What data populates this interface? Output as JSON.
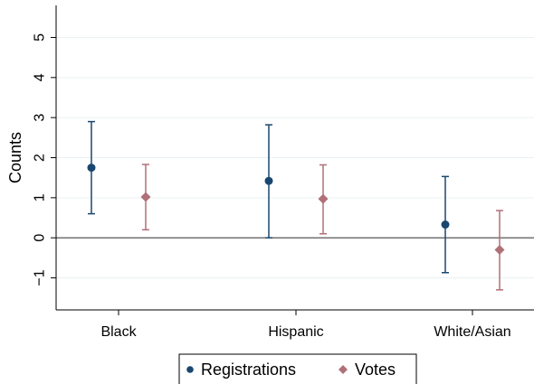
{
  "chart_data": {
    "type": "scatter",
    "subtype": "point-estimates-with-confidence-intervals",
    "ylabel": "Counts",
    "xlabel": "",
    "categories": [
      "Black",
      "Hispanic",
      "White/Asian"
    ],
    "ylim": [
      -1.8,
      5.8
    ],
    "yticks": [
      -1,
      0,
      1,
      2,
      3,
      4,
      5
    ],
    "ytick_labels": [
      "−1",
      "0",
      "1",
      "2",
      "3",
      "4",
      "5"
    ],
    "grid": true,
    "reference_line_y": 0,
    "legend_position": "bottom-center",
    "series": [
      {
        "name": "Registrations",
        "marker": "circle",
        "color": "#1a476f",
        "values": [
          1.75,
          1.42,
          0.33
        ],
        "ci_low": [
          0.6,
          0.0,
          -0.87
        ],
        "ci_high": [
          2.9,
          2.82,
          1.53
        ]
      },
      {
        "name": "Votes",
        "marker": "diamond",
        "color": "#b07078",
        "values": [
          1.02,
          0.97,
          -0.3
        ],
        "ci_low": [
          0.2,
          0.1,
          -1.3
        ],
        "ci_high": [
          1.83,
          1.82,
          0.68
        ]
      }
    ]
  }
}
